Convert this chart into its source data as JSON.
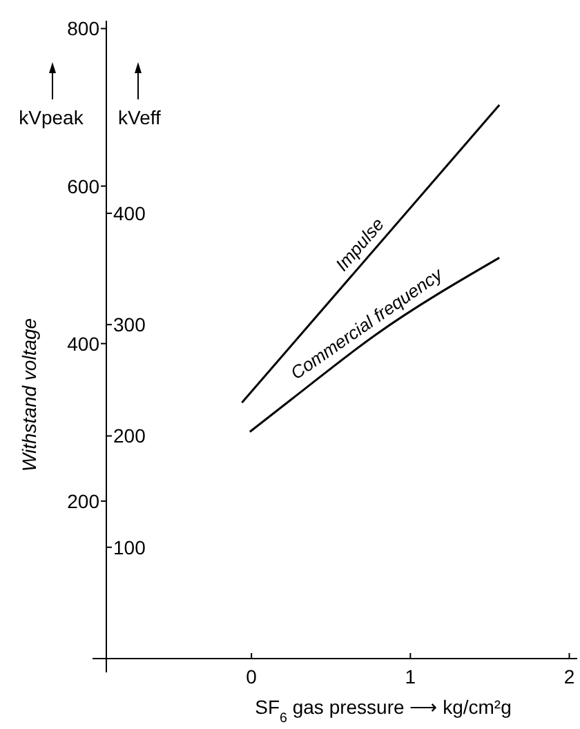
{
  "chart_data": {
    "type": "line",
    "xlabel": "SF$_{6}$ gas pressure ⟶ kg/cm²g",
    "ylabel": "Withstand voltage",
    "y2label": "kVeff",
    "annotations": [
      "kVpeak"
    ],
    "xlim": [
      -1.0,
      2.05
    ],
    "xticks": [
      0,
      1,
      2
    ],
    "ylim": [
      0,
      810
    ],
    "yticks": [
      200,
      400,
      600,
      800
    ],
    "y2lim": [
      0,
      573
    ],
    "y2ticks": [
      100,
      200,
      300,
      400
    ],
    "series": [
      {
        "name": "Impulse",
        "color": "#000000",
        "x": [
          -0.06,
          1.56
        ],
        "values": [
          325,
          703
        ]
      },
      {
        "name": "Commercial frequency",
        "color": "#000000",
        "x": [
          -0.01,
          0.25,
          0.78,
          1.56
        ],
        "values": [
          288,
          329,
          411,
          509
        ]
      }
    ]
  }
}
